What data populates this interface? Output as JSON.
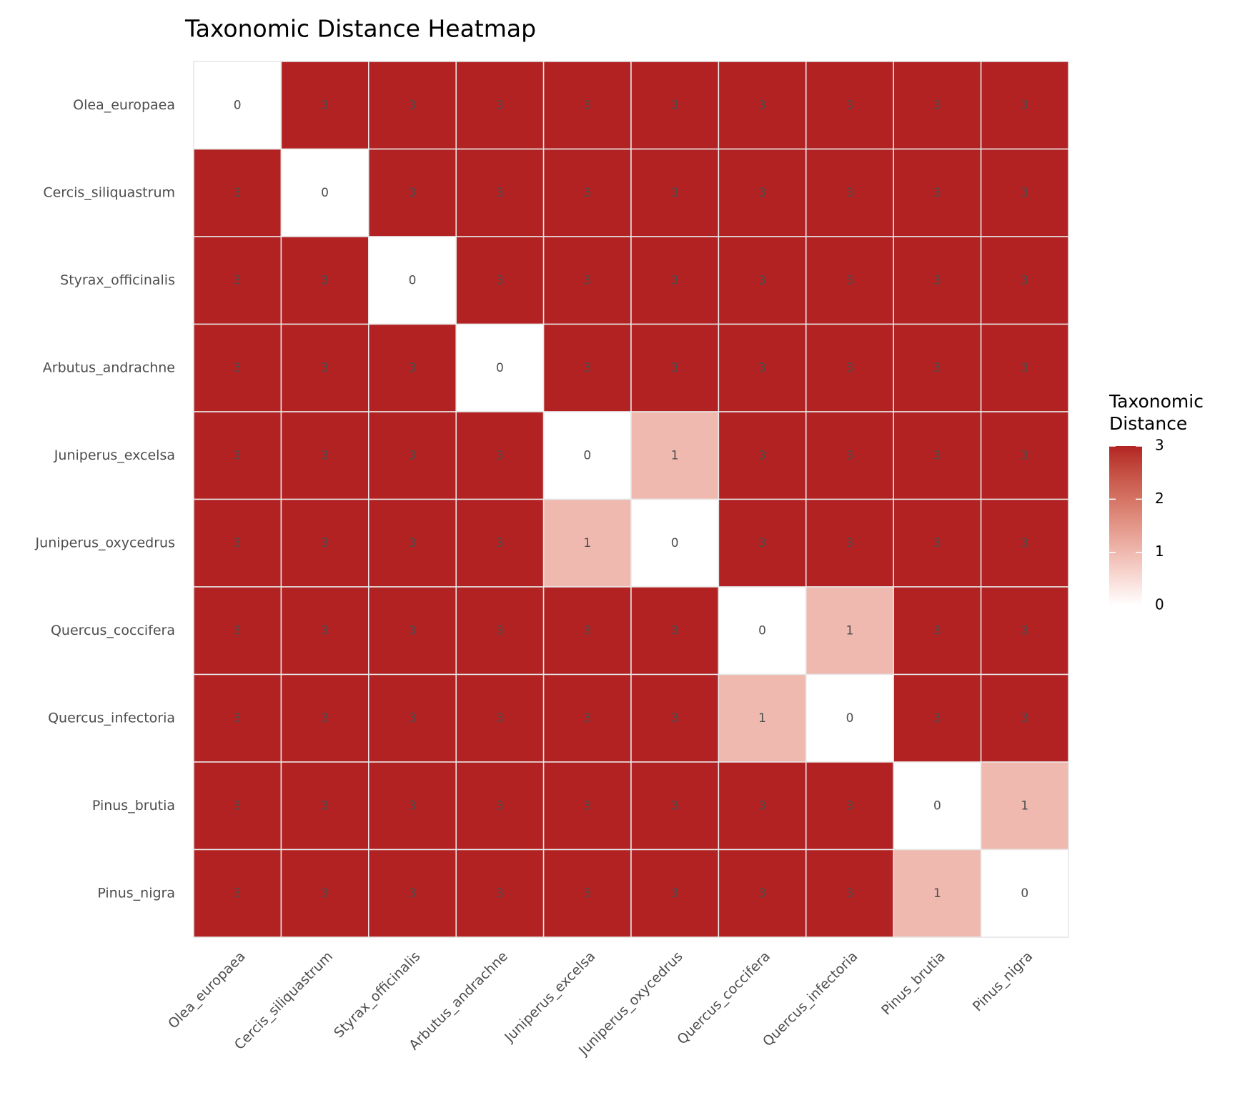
{
  "chart_data": {
    "type": "heatmap",
    "title": "Taxonomic Distance Heatmap",
    "x_categories": [
      "Olea_europaea",
      "Cercis_siliquastrum",
      "Styrax_officinalis",
      "Arbutus_andrachne",
      "Juniperus_excelsa",
      "Juniperus_oxycedrus",
      "Quercus_coccifera",
      "Quercus_infectoria",
      "Pinus_brutia",
      "Pinus_nigra"
    ],
    "y_categories": [
      "Olea_europaea",
      "Cercis_siliquastrum",
      "Styrax_officinalis",
      "Arbutus_andrachne",
      "Juniperus_excelsa",
      "Juniperus_oxycedrus",
      "Quercus_coccifera",
      "Quercus_infectoria",
      "Pinus_brutia",
      "Pinus_nigra"
    ],
    "values": [
      [
        0,
        3,
        3,
        3,
        3,
        3,
        3,
        3,
        3,
        3
      ],
      [
        3,
        0,
        3,
        3,
        3,
        3,
        3,
        3,
        3,
        3
      ],
      [
        3,
        3,
        0,
        3,
        3,
        3,
        3,
        3,
        3,
        3
      ],
      [
        3,
        3,
        3,
        0,
        3,
        3,
        3,
        3,
        3,
        3
      ],
      [
        3,
        3,
        3,
        3,
        0,
        1,
        3,
        3,
        3,
        3
      ],
      [
        3,
        3,
        3,
        3,
        1,
        0,
        3,
        3,
        3,
        3
      ],
      [
        3,
        3,
        3,
        3,
        3,
        3,
        0,
        1,
        3,
        3
      ],
      [
        3,
        3,
        3,
        3,
        3,
        3,
        1,
        0,
        3,
        3
      ],
      [
        3,
        3,
        3,
        3,
        3,
        3,
        3,
        3,
        0,
        1
      ],
      [
        3,
        3,
        3,
        3,
        3,
        3,
        3,
        3,
        1,
        0
      ]
    ],
    "legend_title": "Taxonomic Distance",
    "colorbar_lim": [
      0,
      3
    ],
    "colorbar_ticks": [
      0,
      1,
      2,
      3
    ],
    "low_color": "#ffffff",
    "high_color": "#b22222"
  }
}
